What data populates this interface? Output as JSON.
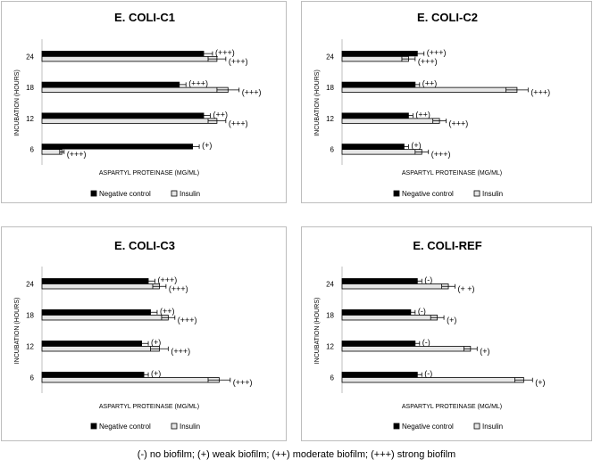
{
  "chart_data": [
    {
      "type": "bar",
      "orientation": "horizontal",
      "title": "E. COLI-C1",
      "ylabel": "INCUBATION (HOURS)",
      "xlabel": "ASPARTYL PROTEINASE (MG/ML)",
      "categories": [
        "24",
        "18",
        "12",
        "6"
      ],
      "xlim": [
        0,
        1
      ],
      "series": [
        {
          "name": "Negative control",
          "values": [
            0.73,
            0.62,
            0.73,
            0.68
          ],
          "errors": [
            0.04,
            0.03,
            0.03,
            0.03
          ],
          "labels": [
            "(+++)",
            "(+++)",
            "(++)",
            "(+)"
          ]
        },
        {
          "name": "Insulin",
          "values": [
            0.79,
            0.84,
            0.79,
            0.09
          ],
          "errors": [
            0.04,
            0.05,
            0.04,
            0.01
          ],
          "labels": [
            "(+++)",
            "(+++)",
            "(+++)",
            "(+++)"
          ]
        }
      ],
      "legend_position": "bottom"
    },
    {
      "type": "bar",
      "orientation": "horizontal",
      "title": "E. COLI-C2",
      "ylabel": "INCUBATION (HOURS)",
      "xlabel": "ASPARTYL PROTEINASE (MG/ML)",
      "categories": [
        "24",
        "18",
        "12",
        "6"
      ],
      "xlim": [
        0,
        1
      ],
      "series": [
        {
          "name": "Negative control",
          "values": [
            0.34,
            0.33,
            0.3,
            0.28
          ],
          "errors": [
            0.03,
            0.02,
            0.02,
            0.02
          ],
          "labels": [
            "(+++)",
            "(++)",
            "(++)",
            "(+)"
          ]
        },
        {
          "name": "Insulin",
          "values": [
            0.3,
            0.79,
            0.44,
            0.36
          ],
          "errors": [
            0.03,
            0.05,
            0.03,
            0.03
          ],
          "labels": [
            "(+++)",
            "(+++)",
            "(+++)",
            "(+++)"
          ]
        }
      ],
      "legend_position": "bottom"
    },
    {
      "type": "bar",
      "orientation": "horizontal",
      "title": "E. COLI-C3",
      "ylabel": "INCUBATION (HOURS)",
      "xlabel": "ASPARTYL PROTEINASE (MG/ML)",
      "categories": [
        "24",
        "18",
        "12",
        "6"
      ],
      "xlim": [
        0,
        1
      ],
      "series": [
        {
          "name": "Negative control",
          "values": [
            0.48,
            0.49,
            0.45,
            0.46
          ],
          "errors": [
            0.03,
            0.03,
            0.03,
            0.02
          ],
          "labels": [
            "(+++)",
            "(++)",
            "(+)",
            "(+)"
          ]
        },
        {
          "name": "Insulin",
          "values": [
            0.53,
            0.57,
            0.53,
            0.8
          ],
          "errors": [
            0.03,
            0.03,
            0.04,
            0.05
          ],
          "labels": [
            "(+++)",
            "(+++)",
            "(+++)",
            "(+++)"
          ]
        }
      ],
      "legend_position": "bottom"
    },
    {
      "type": "bar",
      "orientation": "horizontal",
      "title": "E. COLI-REF",
      "ylabel": "INCUBATION (HOURS)",
      "xlabel": "ASPARTYL PROTEINASE (MG/ML)",
      "categories": [
        "24",
        "18",
        "12",
        "6"
      ],
      "xlim": [
        0,
        1
      ],
      "series": [
        {
          "name": "Negative control",
          "values": [
            0.34,
            0.31,
            0.33,
            0.34
          ],
          "errors": [
            0.02,
            0.02,
            0.02,
            0.02
          ],
          "labels": [
            "(-)",
            "(-)",
            "(-)",
            "(-)"
          ]
        },
        {
          "name": "Insulin",
          "values": [
            0.48,
            0.43,
            0.58,
            0.82
          ],
          "errors": [
            0.03,
            0.03,
            0.03,
            0.04
          ],
          "labels": [
            "(+ +)",
            "(+)",
            "(+)",
            "(+)"
          ]
        }
      ],
      "legend_position": "bottom"
    }
  ],
  "footnote": "(-) no biofilm; (+) weak biofilm; (++) moderate biofilm; (+++) strong biofilm",
  "colors": {
    "negative_control": "#000000",
    "insulin": "#e6e6e6",
    "outline": "#000000",
    "border": "#bdbdbd"
  }
}
